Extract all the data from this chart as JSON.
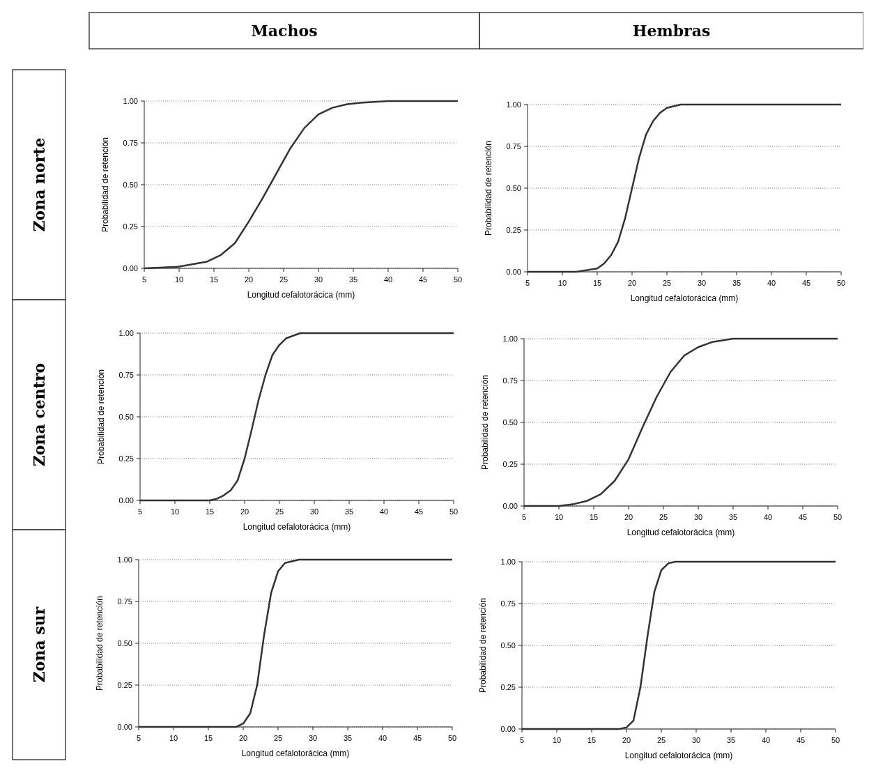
{
  "chart_data": [
    {
      "type": "other",
      "annotations": [
        "Machos",
        "Hembras",
        "Zona norte",
        "Zona centro",
        "Zona sur"
      ]
    },
    {
      "type": "line",
      "xlabel": "Longitud cefalotorácica (mm)",
      "ylabel": "Probabilidad de retención",
      "xlim": [
        5,
        50
      ],
      "xticks": [
        5,
        10,
        15,
        20,
        25,
        30,
        35,
        40,
        45,
        50
      ],
      "ylim": [
        0,
        1
      ],
      "yticks": [
        {
          "value": 0,
          "label": "0.00"
        },
        {
          "value": 0.25,
          "label": "0.25"
        },
        {
          "value": 0.5,
          "label": "0.50"
        },
        {
          "value": 0.75,
          "label": "0.75"
        },
        {
          "value": 1,
          "label": "1.00"
        }
      ],
      "grid": "y",
      "line_style": "solid",
      "series": [
        {
          "color": "#333333",
          "x": [
            5,
            10,
            14,
            16,
            18,
            20,
            22,
            24,
            26,
            28,
            30,
            32,
            34,
            36,
            40,
            50
          ],
          "values": [
            0,
            0.01,
            0.04,
            0.08,
            0.15,
            0.28,
            0.42,
            0.57,
            0.72,
            0.84,
            0.92,
            0.96,
            0.98,
            0.99,
            1,
            1
          ]
        }
      ]
    },
    {
      "type": "line",
      "xlabel": "Longitud cefalotorácica (mm)",
      "ylabel": "Probabilidad de retención",
      "xlim": [
        5,
        50
      ],
      "xticks": [
        5,
        10,
        15,
        20,
        25,
        30,
        35,
        40,
        45,
        50
      ],
      "ylim": [
        0,
        1
      ],
      "yticks": [
        {
          "value": 0,
          "label": "0.00"
        },
        {
          "value": 0.25,
          "label": "0.25"
        },
        {
          "value": 0.5,
          "label": "0.50"
        },
        {
          "value": 0.75,
          "label": "0.75"
        },
        {
          "value": 1,
          "label": "1.00"
        }
      ],
      "grid": "y",
      "line_style": "solid",
      "series": [
        {
          "color": "#333333",
          "x": [
            5,
            12,
            15,
            16,
            17,
            18,
            19,
            20,
            21,
            22,
            23,
            24,
            25,
            27,
            50
          ],
          "values": [
            0,
            0,
            0.02,
            0.05,
            0.1,
            0.18,
            0.32,
            0.5,
            0.68,
            0.82,
            0.9,
            0.95,
            0.98,
            1,
            1
          ]
        }
      ]
    },
    {
      "type": "line",
      "xlabel": "Longitud cefalotorácica (mm)",
      "ylabel": "Probabilidad de retención",
      "xlim": [
        5,
        50
      ],
      "xticks": [
        5,
        10,
        15,
        20,
        25,
        30,
        35,
        40,
        45,
        50
      ],
      "ylim": [
        0,
        1
      ],
      "yticks": [
        {
          "value": 0,
          "label": "0.00"
        },
        {
          "value": 0.25,
          "label": "0.25"
        },
        {
          "value": 0.5,
          "label": "0.50"
        },
        {
          "value": 0.75,
          "label": "0.75"
        },
        {
          "value": 1,
          "label": "1.00"
        }
      ],
      "grid": "y",
      "line_style": "solid",
      "series": [
        {
          "color": "#333333",
          "x": [
            5,
            15,
            16,
            17,
            18,
            19,
            20,
            21,
            22,
            23,
            24,
            25,
            26,
            28,
            50
          ],
          "values": [
            0,
            0,
            0.01,
            0.03,
            0.06,
            0.12,
            0.25,
            0.42,
            0.6,
            0.75,
            0.87,
            0.93,
            0.97,
            1,
            1
          ]
        }
      ]
    },
    {
      "type": "line",
      "xlabel": "Longitud cefalotorácica (mm)",
      "ylabel": "Probabilidad de retención",
      "xlim": [
        5,
        50
      ],
      "xticks": [
        5,
        10,
        15,
        20,
        25,
        30,
        35,
        40,
        45,
        50
      ],
      "ylim": [
        0,
        1
      ],
      "yticks": [
        {
          "value": 0,
          "label": "0.00"
        },
        {
          "value": 0.25,
          "label": "0.25"
        },
        {
          "value": 0.5,
          "label": "0.50"
        },
        {
          "value": 0.75,
          "label": "0.75"
        },
        {
          "value": 1,
          "label": "1.00"
        }
      ],
      "grid": "y",
      "line_style": "solid",
      "series": [
        {
          "color": "#333333",
          "x": [
            5,
            10,
            12,
            14,
            16,
            18,
            20,
            22,
            24,
            26,
            28,
            30,
            32,
            35,
            50
          ],
          "values": [
            0,
            0,
            0.01,
            0.03,
            0.07,
            0.15,
            0.28,
            0.47,
            0.65,
            0.8,
            0.9,
            0.95,
            0.98,
            1,
            1
          ]
        }
      ]
    },
    {
      "type": "line",
      "xlabel": "Longitud cefalotorácica (mm)",
      "ylabel": "Probabilidad de retención",
      "xlim": [
        5,
        50
      ],
      "xticks": [
        5,
        10,
        15,
        20,
        25,
        30,
        35,
        40,
        45,
        50
      ],
      "ylim": [
        0,
        1
      ],
      "yticks": [
        {
          "value": 0,
          "label": "0.00"
        },
        {
          "value": 0.25,
          "label": "0.25"
        },
        {
          "value": 0.5,
          "label": "0.50"
        },
        {
          "value": 0.75,
          "label": "0.75"
        },
        {
          "value": 1,
          "label": "1.00"
        }
      ],
      "grid": "y",
      "line_style": "solid",
      "series": [
        {
          "color": "#333333",
          "x": [
            5,
            19,
            20,
            21,
            22,
            23,
            24,
            25,
            26,
            28,
            50
          ],
          "values": [
            0,
            0,
            0.02,
            0.08,
            0.25,
            0.55,
            0.8,
            0.93,
            0.98,
            1,
            1
          ]
        }
      ]
    },
    {
      "type": "line",
      "xlabel": "Longitud cefalotorácica (mm)",
      "ylabel": "Probabilidad de retención",
      "xlim": [
        5,
        50
      ],
      "xticks": [
        5,
        10,
        15,
        20,
        25,
        30,
        35,
        40,
        45,
        50
      ],
      "ylim": [
        0,
        1
      ],
      "yticks": [
        {
          "value": 0,
          "label": "0.00"
        },
        {
          "value": 0.25,
          "label": "0.25"
        },
        {
          "value": 0.5,
          "label": "0.50"
        },
        {
          "value": 0.75,
          "label": "0.75"
        },
        {
          "value": 1,
          "label": "1.00"
        }
      ],
      "grid": "y",
      "line_style": "solid",
      "series": [
        {
          "color": "#333333",
          "x": [
            5,
            19,
            20,
            21,
            22,
            23,
            24,
            25,
            26,
            27,
            50
          ],
          "values": [
            0,
            0,
            0.01,
            0.05,
            0.25,
            0.55,
            0.82,
            0.95,
            0.99,
            1,
            1
          ]
        }
      ]
    }
  ]
}
